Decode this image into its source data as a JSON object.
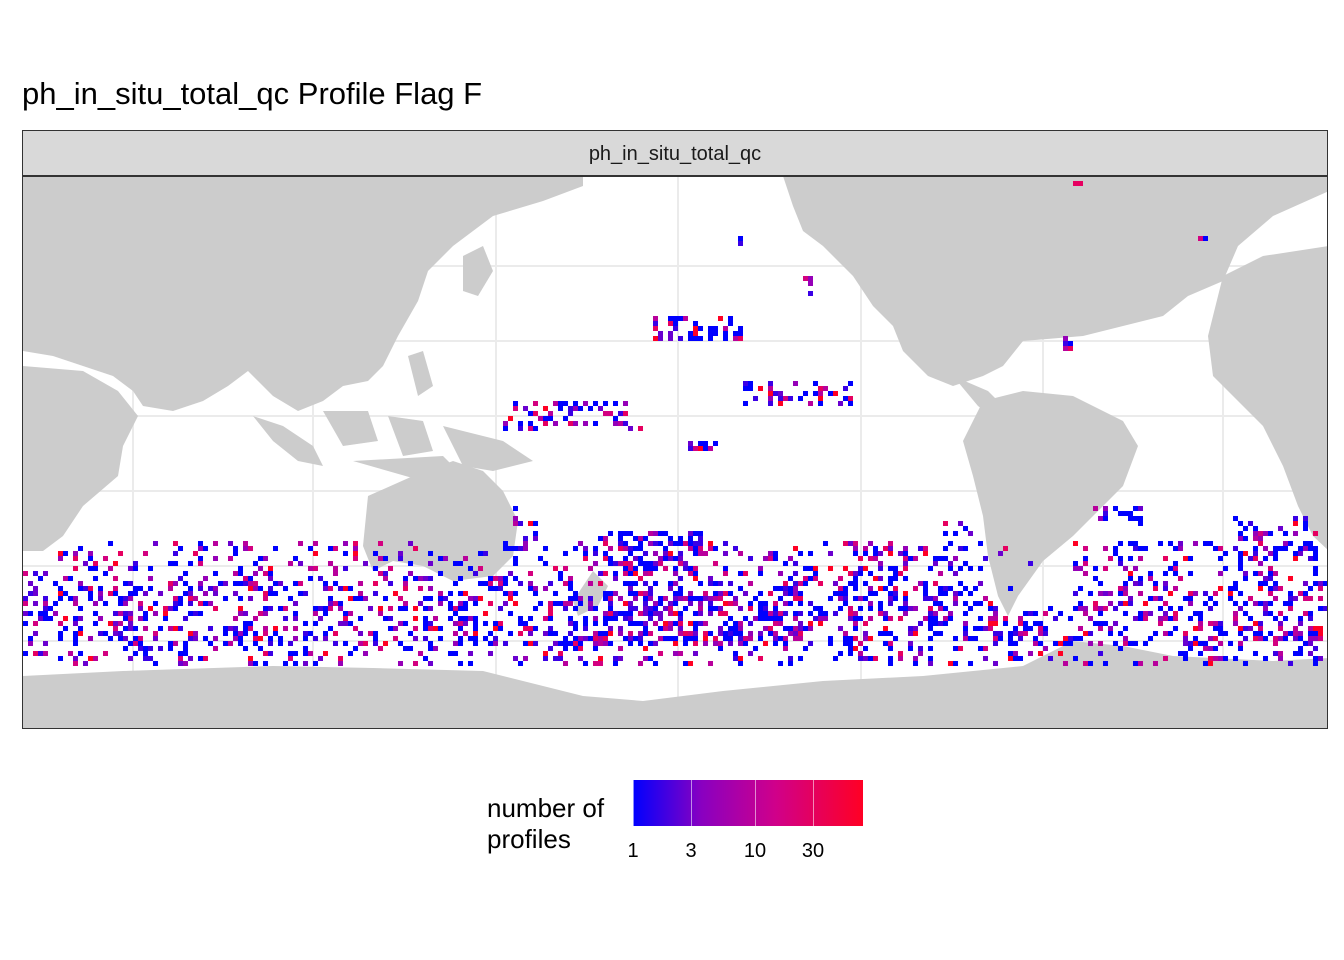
{
  "title": "ph_in_situ_total_qc Profile Flag F",
  "facet_label": "ph_in_situ_total_qc",
  "legend": {
    "title_line1": "number of",
    "title_line2": "profiles",
    "ticks": [
      "1",
      "3",
      "10",
      "30"
    ],
    "scale": "log",
    "low_color": "#0000ff",
    "high_color": "#ff0000"
  },
  "colors": {
    "land": "#cccccc",
    "ocean": "#ffffff",
    "grid": "#ebebeb",
    "strip": "#d9d9d9"
  },
  "map": {
    "projection": "equirectangular, Pacific-centred",
    "lon_range": [
      20,
      380
    ],
    "lat_range": [
      -85,
      90
    ],
    "cell_size_deg": 2,
    "grid_lines": "on"
  }
}
